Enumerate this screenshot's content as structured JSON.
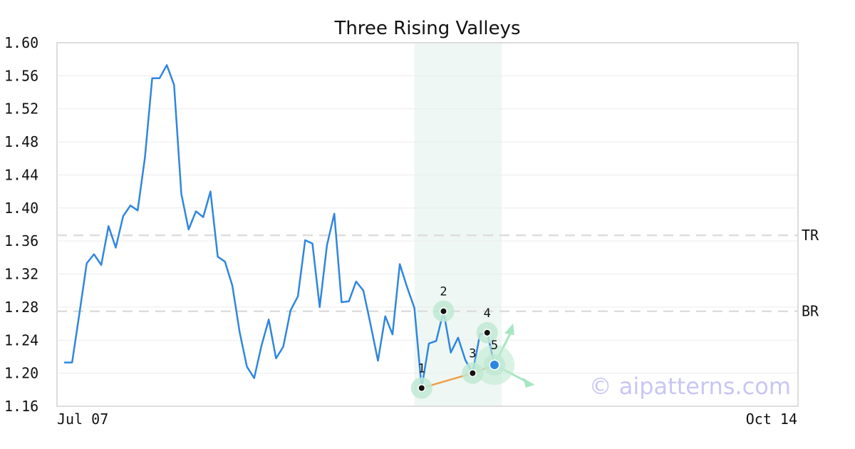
{
  "chart_data": {
    "type": "line",
    "title": "Three Rising Valleys",
    "xlabel": "",
    "ylabel": "",
    "x_tick_labels": [
      "Jul 07",
      "Oct 14"
    ],
    "y_ticks": [
      "1.60",
      "1.56",
      "1.52",
      "1.48",
      "1.44",
      "1.40",
      "1.36",
      "1.32",
      "1.28",
      "1.24",
      "1.20",
      "1.16"
    ],
    "ylim": [
      1.16,
      1.6
    ],
    "grid": true,
    "legend": "none",
    "series": [
      {
        "color": "#2f86e0",
        "values": [
          1.213,
          1.213,
          1.272,
          1.333,
          1.344,
          1.331,
          1.378,
          1.352,
          1.39,
          1.403,
          1.397,
          1.461,
          1.557,
          1.557,
          1.573,
          1.549,
          1.417,
          1.374,
          1.396,
          1.389,
          1.42,
          1.341,
          1.335,
          1.306,
          1.25,
          1.208,
          1.194,
          1.233,
          1.265,
          1.218,
          1.232,
          1.276,
          1.293,
          1.361,
          1.357,
          1.28,
          1.355,
          1.393,
          1.286,
          1.287,
          1.311,
          1.3,
          1.258,
          1.215,
          1.269,
          1.247,
          1.332,
          1.304,
          1.279,
          1.182,
          1.236,
          1.239,
          1.275,
          1.225,
          1.243,
          1.216,
          1.2,
          1.247,
          1.249,
          1.21
        ]
      }
    ],
    "levels": [
      {
        "label": "TR",
        "value": 1.367
      },
      {
        "label": "BR",
        "value": 1.275
      }
    ],
    "pattern_points": [
      {
        "label": "1",
        "index": 49,
        "value": 1.182
      },
      {
        "label": "2",
        "index": 52,
        "value": 1.275
      },
      {
        "label": "3",
        "index": 56,
        "value": 1.2
      },
      {
        "label": "4",
        "index": 58,
        "value": 1.249
      },
      {
        "label": "5",
        "index": 59,
        "value": 1.21
      }
    ],
    "highlight_range": [
      48.0,
      60.0
    ],
    "colors": {
      "line": "#2f86e0",
      "support": "#f0a04b",
      "highlight": "#eef7f3",
      "marker": "#bfe9d2",
      "arrow": "#a6e6c1",
      "last_point": "#2f86e0"
    }
  },
  "watermark": "© aipatterns.com"
}
